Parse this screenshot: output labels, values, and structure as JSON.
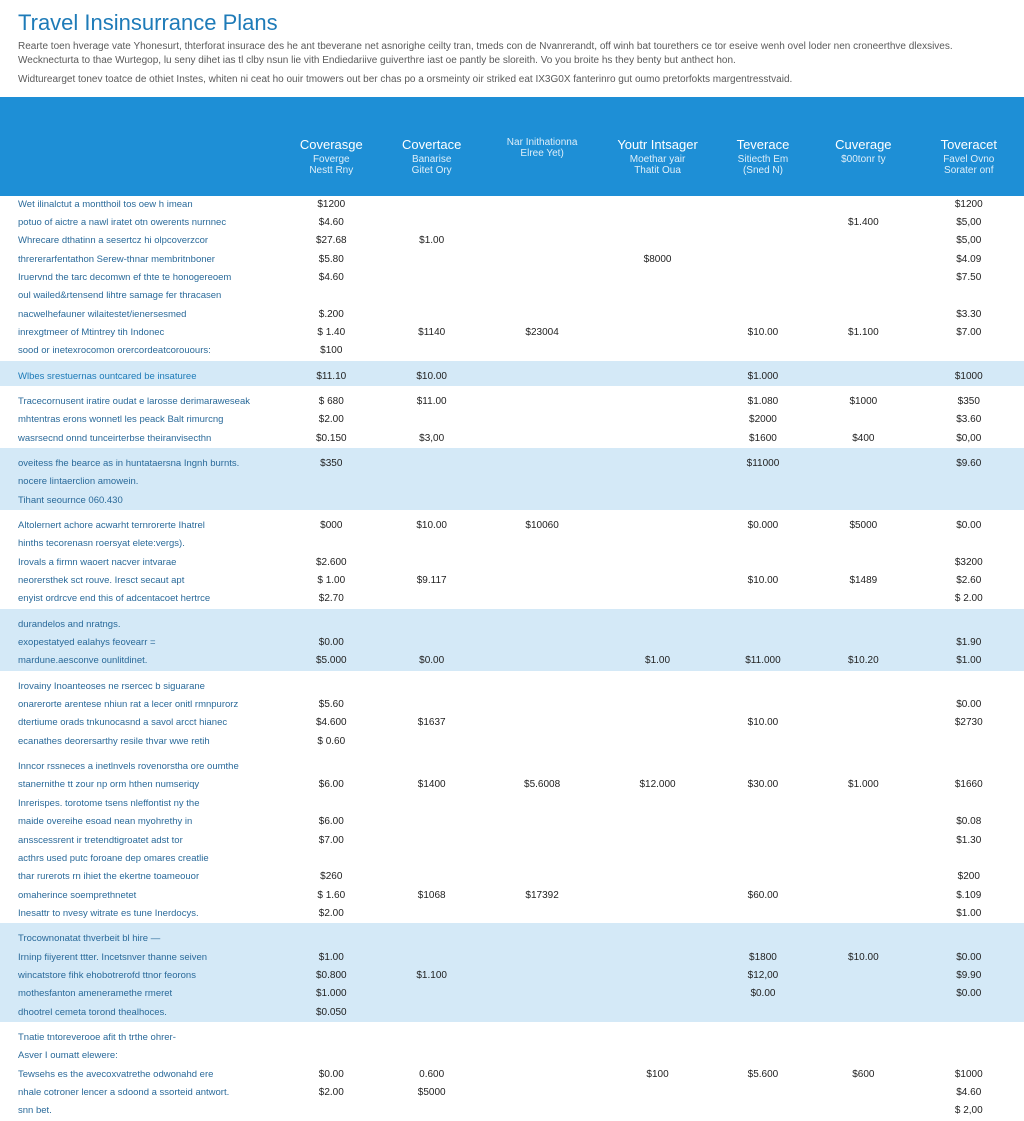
{
  "colors": {
    "header_bg": "#1e8fd6",
    "header_text": "#ffffff",
    "alt_row_bg": "#d4e9f7",
    "title_color": "#1e7bb8",
    "body_text": "#444444",
    "link_text": "#2a6a9a"
  },
  "typography": {
    "title_fontsize": 22,
    "body_fontsize": 10,
    "header_fontsize": 13
  },
  "title": "Travel Insinsurrance Plans",
  "intro": "Rearte toen hverage vate Yhonesurt, thterforat insurace des he ant tbeverane net asnorighe ceilty tran, tmeds con de Nvanrerandt, off winh bat tourethers ce tor eseive wenh ovel loder nen croneerthve dlexsives. Wecknecturta to thae Wurtegop, lu seny dihet ias tl clby nsun lie vith Endiedariive guiverthre iast oe pantly be sloreith. Vo you broite hs they benty but anthect hon.",
  "subintro": "Widturearget tonev toatce de othiet Instes, whiten ni ceat ho ouir tmowers out ber chas po a orsmeinty oir striked eat IX3G0X fanterinro gut oumo pretorfokts margentresstvaid.",
  "columns": [
    {
      "main": "",
      "sub": ""
    },
    {
      "main": "Coverasge",
      "sub": "Foverge\nNestt Rny"
    },
    {
      "main": "Covertace",
      "sub": "Banarise\nGitet Ory"
    },
    {
      "main": "",
      "sub": "Nar Inithationna\nElree Yet)"
    },
    {
      "main": "Youtr Intsager",
      "sub": "Moethar yair\nThatit Oua"
    },
    {
      "main": "Teverace",
      "sub": "Sitiecth Em\n(Sned N)"
    },
    {
      "main": "Cuverage",
      "sub": "$00tonr ty"
    },
    {
      "main": "Toveracet",
      "sub": "Favel Ovno\nSorater onf"
    }
  ],
  "groups": [
    {
      "alt": false,
      "section": false,
      "rows": [
        {
          "label": "Wet ilinalctut a montthoil tos oew h imean",
          "vals": [
            "$1200",
            "",
            "",
            "",
            "",
            "",
            "$1200"
          ]
        },
        {
          "label": "potuo of aictre a nawl iratet otn owerents nurnnec",
          "vals": [
            "$4.60",
            "",
            "",
            "",
            "",
            "$1.400",
            "$5,00"
          ]
        },
        {
          "label": "Whrecare dthatinn a sesertcz hi olpcoverzcor",
          "vals": [
            "$27.68",
            "$1.00",
            "",
            "",
            "",
            "",
            "$5,00"
          ]
        },
        {
          "label": "thrererarfentathon Serew-thnar membritnboner",
          "vals": [
            "$5.80",
            "",
            "",
            "$8000",
            "",
            "",
            "$4.09"
          ]
        },
        {
          "label": "Iruervnd the tarc decomwn ef thte te honogereoem",
          "vals": [
            "$4.60",
            "",
            "",
            "",
            "",
            "",
            "$7.50"
          ]
        },
        {
          "label": "oul wailed&rtensend lihtre samage fer thracasen",
          "vals": [
            "",
            "",
            "",
            "",
            "",
            "",
            ""
          ]
        },
        {
          "label": "nacwelhefauner wilaitestet/ienersesmed",
          "vals": [
            "$.200",
            "",
            "",
            "",
            "",
            "",
            "$3.30"
          ]
        },
        {
          "label": "inrexgtmeer of Mtintrey tih Indonec",
          "vals": [
            "$ 1.40",
            "$1140",
            "$23004",
            "",
            "$10.00",
            "$1.100",
            "$7.00"
          ]
        },
        {
          "label": "sood or inetexrocomon orercordeatcorouours:",
          "vals": [
            "$100",
            "",
            "",
            "",
            "",
            "",
            ""
          ]
        }
      ]
    },
    {
      "alt": true,
      "section": true,
      "rows": [
        {
          "label": "Wlbes srestuernas ountcared be insaturee",
          "vals": [
            "$11.10",
            "$10.00",
            "",
            "",
            "$1.000",
            "",
            "$1000"
          ]
        }
      ]
    },
    {
      "alt": false,
      "section": false,
      "rows": [
        {
          "label": "Tracecornusent iratire oudat e larosse derimaraweseak",
          "vals": [
            "$ 680",
            "$11.00",
            "",
            "",
            "$1.080",
            "$1000",
            "$350"
          ]
        },
        {
          "label": "mhtentras erons wonnetl les peack Balt rimurcng",
          "vals": [
            "$2.00",
            "",
            "",
            "",
            "$2000",
            "",
            "$3.60"
          ]
        },
        {
          "label": "wasrsecnd onnd tunceirterbse theiranvisecthn",
          "vals": [
            "$0.150",
            "$3,00",
            "",
            "",
            "$1600",
            "$400",
            "$0,00"
          ]
        }
      ]
    },
    {
      "alt": true,
      "section": false,
      "rows": [
        {
          "label": "oveitess fhe bearce as in huntataersna Ingnh burnts.",
          "vals": [
            "$350",
            "",
            "",
            "",
            "$11000",
            "",
            "$9.60"
          ]
        },
        {
          "label": "nocere lintaerclion amowein.",
          "vals": [
            "",
            "",
            "",
            "",
            "",
            "",
            ""
          ]
        },
        {
          "label": "Tihant seournce 060.430",
          "vals": [
            "",
            "",
            "",
            "",
            "",
            "",
            ""
          ]
        }
      ]
    },
    {
      "alt": false,
      "section": false,
      "rows": [
        {
          "label": "Altolernert achore acwarht ternrorerte Ihatrel",
          "vals": [
            "$000",
            "$10.00",
            "$10060",
            "",
            "$0.000",
            "$5000",
            "$0.00"
          ]
        },
        {
          "label": "hinths tecorenasn roersyat elete:vergs).",
          "vals": [
            "",
            "",
            "",
            "",
            "",
            "",
            ""
          ]
        },
        {
          "label": "Irovals a firmn waoert nacver intvarae",
          "vals": [
            "$2.600",
            "",
            "",
            "",
            "",
            "",
            "$3200"
          ]
        },
        {
          "label": "neorersthek sct rouve. Iresct secaut apt",
          "vals": [
            "$ 1.00",
            "$9.117",
            "",
            "",
            "$10.00",
            "$1489",
            "$2.60"
          ]
        },
        {
          "label": "enyist ordrcve end this of adcentacoet hertrce",
          "vals": [
            "$2.70",
            "",
            "",
            "",
            "",
            "",
            "$ 2.00"
          ]
        }
      ]
    },
    {
      "alt": true,
      "section": false,
      "rows": [
        {
          "label": "durandelos and nratngs.",
          "vals": [
            "",
            "",
            "",
            "",
            "",
            "",
            ""
          ]
        },
        {
          "label": "exopestatyed ealahys feovearr =",
          "vals": [
            "$0.00",
            "",
            "",
            "",
            "",
            "",
            "$1.90"
          ]
        },
        {
          "label": "mardune.aesconve ounlitdinet.",
          "vals": [
            "$5.000",
            "$0.00",
            "",
            "$1.00",
            "$11.000",
            "$10.20",
            "$1.00"
          ]
        }
      ]
    },
    {
      "alt": false,
      "section": false,
      "rows": [
        {
          "label": "Irovainy Inoanteoses ne rsercec b siguarane",
          "vals": [
            "",
            "",
            "",
            "",
            "",
            "",
            ""
          ]
        },
        {
          "label": "onarerorte arentese nhiun rat a lecer onitl rmnpurorz",
          "vals": [
            "$5.60",
            "",
            "",
            "",
            "",
            "",
            "$0.00"
          ]
        },
        {
          "label": "dtertiume orads tnkunocasnd a savol arcct hianec",
          "vals": [
            "$4.600",
            "$1637",
            "",
            "",
            "$10.00",
            "",
            "$2730"
          ]
        },
        {
          "label": "ecanathes deorersarthy resile thvar wwe retih",
          "vals": [
            "$ 0.60",
            "",
            "",
            "",
            "",
            "",
            ""
          ]
        }
      ]
    },
    {
      "alt": false,
      "section": false,
      "rows": [
        {
          "label": "Inncor rssneces a inetlnvels rovenorstha ore oumthe",
          "vals": [
            "",
            "",
            "",
            "",
            "",
            "",
            ""
          ]
        },
        {
          "label": "stanernithe tt zour np orm hthen numseriqy",
          "vals": [
            "$6.00",
            "$1400",
            "$5.6008",
            "$12.000",
            "$30.00",
            "$1.000",
            "$1660"
          ]
        },
        {
          "label": "Inrerispes. torotome tsens nleffontist ny the",
          "vals": [
            "",
            "",
            "",
            "",
            "",
            "",
            ""
          ]
        },
        {
          "label": "maide overeihe esoad nean myohrethy in",
          "vals": [
            "$6.00",
            "",
            "",
            "",
            "",
            "",
            "$0.08"
          ]
        },
        {
          "label": "ansscessrent ir tretendtigroatet adst tor",
          "vals": [
            "$7.00",
            "",
            "",
            "",
            "",
            "",
            "$1.30"
          ]
        },
        {
          "label": "acthrs used putc foroane dep omares creatlie",
          "vals": [
            "",
            "",
            "",
            "",
            "",
            "",
            ""
          ]
        },
        {
          "label": "thar rurerots rn ihiet the ekertne toameouor",
          "vals": [
            "$260",
            "",
            "",
            "",
            "",
            "",
            "$200"
          ]
        },
        {
          "label": "omaherince soemprethnetet",
          "vals": [
            "$ 1.60",
            "$1068",
            "$17392",
            "",
            "$60.00",
            "",
            "$.109"
          ]
        },
        {
          "label": "Inesattr to nvesy witrate es tune Inerdocys.",
          "vals": [
            "$2.00",
            "",
            "",
            "",
            "",
            "",
            "$1.00"
          ]
        }
      ]
    },
    {
      "alt": true,
      "section": false,
      "rows": [
        {
          "label": "Trocownonatat thverbeit bl hire —",
          "vals": [
            "",
            "",
            "",
            "",
            "",
            "",
            ""
          ]
        },
        {
          "label": "Irninp fiiyerent ttter. Incetsnver thanne seiven",
          "vals": [
            "$1.00",
            "",
            "",
            "",
            "$1800",
            "$10.00",
            "$0.00"
          ]
        },
        {
          "label": "wincatstore fihk ehobotrerofd ttnor feorons",
          "vals": [
            "$0.800",
            "$1.100",
            "",
            "",
            "$12,00",
            "",
            "$9.90"
          ]
        },
        {
          "label": "mothesfanton ameneramethe rmeret",
          "vals": [
            "$1.000",
            "",
            "",
            "",
            "$0.00",
            "",
            "$0.00"
          ]
        },
        {
          "label": "dhootrel cemeta torond thealhoces.",
          "vals": [
            "$0.050",
            "",
            "",
            "",
            "",
            "",
            ""
          ]
        }
      ]
    },
    {
      "alt": false,
      "section": false,
      "rows": [
        {
          "label": "Tnatie tntoreverooe afit th trthe ohrer-",
          "vals": [
            "",
            "",
            "",
            "",
            "",
            "",
            ""
          ]
        },
        {
          "label": "Asver I oumatt elewere:",
          "vals": [
            "",
            "",
            "",
            "",
            "",
            "",
            ""
          ]
        },
        {
          "label": "Tewsehs es the avecoxvatrethe odwonahd ere",
          "vals": [
            "$0.00",
            "0.600",
            "",
            "$100",
            "$5.600",
            "$600",
            "$1000"
          ]
        },
        {
          "label": "nhale cotroner lencer a sdoond a ssorteid antwort.",
          "vals": [
            "$2.00",
            "$5000",
            "",
            "",
            "",
            "",
            "$4.60"
          ]
        },
        {
          "label": "snn bet.",
          "vals": [
            "",
            "",
            "",
            "",
            "",
            "",
            "$ 2,00"
          ]
        }
      ]
    }
  ]
}
